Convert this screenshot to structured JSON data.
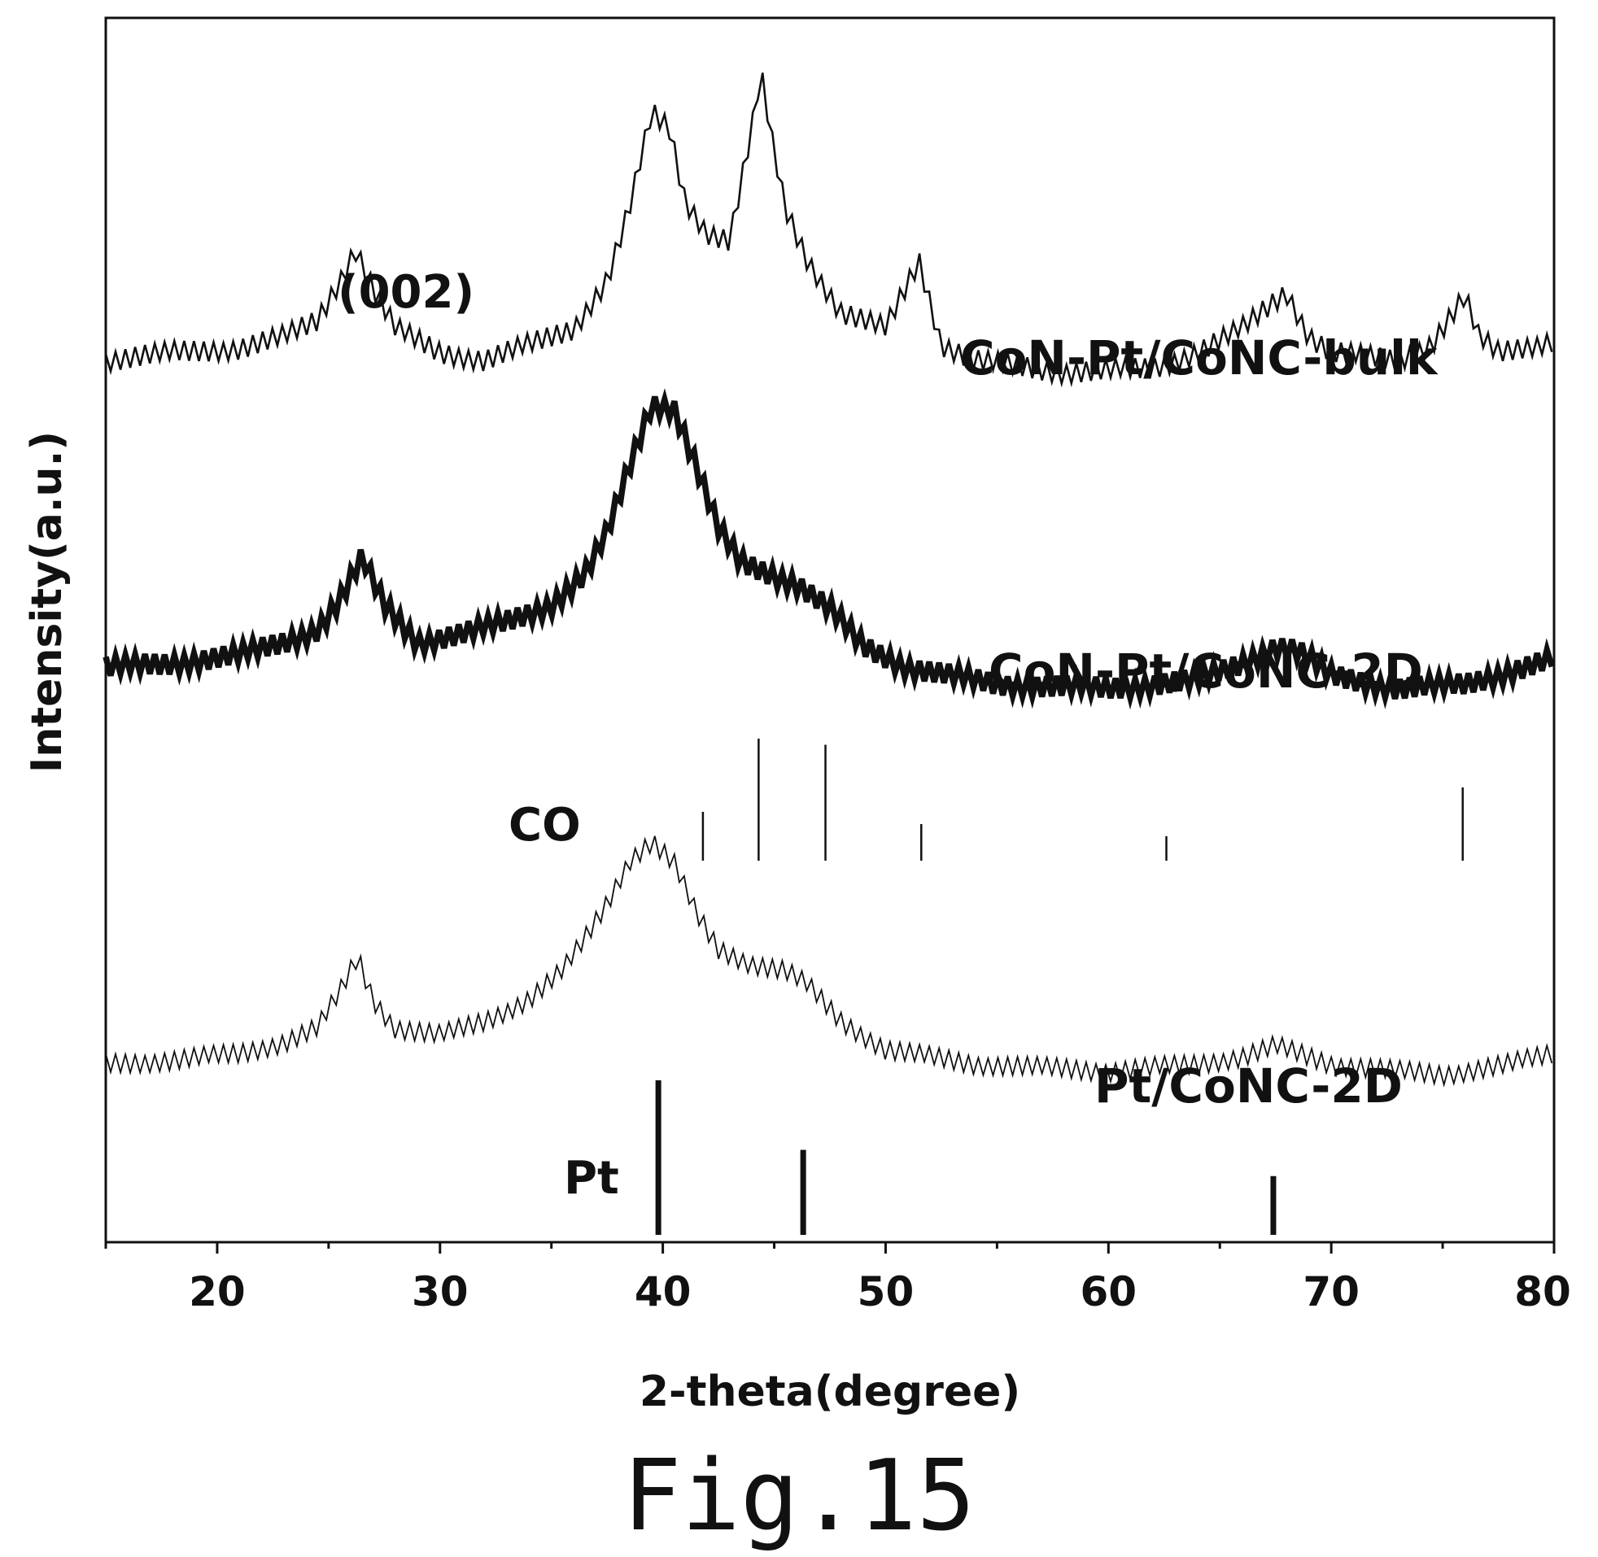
{
  "chart_data": {
    "type": "line",
    "title": "",
    "xlabel": "2-theta(degree)",
    "ylabel": "Intensity(a.u.)",
    "xlim": [
      15,
      80
    ],
    "xticks": [
      20,
      30,
      40,
      50,
      60,
      70,
      80
    ],
    "grid": false,
    "annotations": [
      {
        "text": "(002)",
        "x": 26
      }
    ],
    "series": [
      {
        "name": "CoN-Pt/CoNC-bulk",
        "x": [
          15,
          18,
          21,
          23,
          24.5,
          25.5,
          26.2,
          27,
          28,
          30,
          32,
          34,
          36,
          37.5,
          38.5,
          39.5,
          40.3,
          41,
          42,
          43,
          44,
          44.4,
          44.9,
          45.5,
          46.5,
          48,
          50,
          51.5,
          52.5,
          54,
          58,
          62,
          64,
          66,
          67.5,
          68,
          69,
          70,
          73,
          74.5,
          75.5,
          76,
          76.6,
          77.5,
          80
        ],
        "values": [
          0.3,
          0.32,
          0.33,
          0.36,
          0.4,
          0.5,
          0.58,
          0.48,
          0.38,
          0.32,
          0.3,
          0.34,
          0.38,
          0.5,
          0.68,
          0.92,
          0.88,
          0.7,
          0.62,
          0.6,
          0.88,
          1.02,
          0.85,
          0.68,
          0.55,
          0.42,
          0.38,
          0.55,
          0.34,
          0.3,
          0.27,
          0.28,
          0.32,
          0.38,
          0.45,
          0.47,
          0.36,
          0.32,
          0.3,
          0.34,
          0.42,
          0.46,
          0.36,
          0.32,
          0.35
        ]
      },
      {
        "name": "CoN-Pt/CoNC-2D",
        "x": [
          15,
          18,
          21,
          23,
          24.5,
          25.5,
          26.5,
          27.5,
          29,
          31,
          33,
          35,
          36.5,
          37.5,
          38.5,
          39.5,
          40.5,
          41.5,
          42.5,
          43.5,
          44.5,
          46,
          47.5,
          49,
          51,
          55,
          60,
          64,
          66,
          67.5,
          68.5,
          70,
          73,
          76,
          78,
          80
        ],
        "values": [
          0.3,
          0.31,
          0.33,
          0.36,
          0.39,
          0.46,
          0.56,
          0.45,
          0.36,
          0.38,
          0.41,
          0.45,
          0.52,
          0.62,
          0.78,
          0.93,
          0.92,
          0.78,
          0.63,
          0.55,
          0.53,
          0.5,
          0.44,
          0.35,
          0.3,
          0.26,
          0.25,
          0.27,
          0.31,
          0.35,
          0.34,
          0.28,
          0.25,
          0.26,
          0.29,
          0.32
        ]
      },
      {
        "name": "Pt/CoNC-2D",
        "x": [
          15,
          18,
          21,
          23,
          24.5,
          25.5,
          26.3,
          27,
          28,
          30,
          32,
          34,
          35.5,
          36.5,
          37.5,
          38.5,
          39.5,
          40.5,
          41.5,
          42.5,
          44,
          45.5,
          46.5,
          48,
          50,
          54,
          60,
          64,
          66,
          67.5,
          68.5,
          70,
          73,
          75,
          78,
          80
        ],
        "values": [
          0.3,
          0.31,
          0.33,
          0.36,
          0.4,
          0.5,
          0.6,
          0.48,
          0.4,
          0.38,
          0.42,
          0.48,
          0.56,
          0.65,
          0.75,
          0.87,
          0.92,
          0.86,
          0.72,
          0.62,
          0.58,
          0.56,
          0.52,
          0.42,
          0.34,
          0.3,
          0.28,
          0.3,
          0.32,
          0.35,
          0.33,
          0.3,
          0.28,
          0.27,
          0.3,
          0.33
        ]
      }
    ],
    "reference_patterns": [
      {
        "name": "CO",
        "positions": [
          41.8,
          44.3,
          47.3,
          51.6,
          62.6,
          75.9
        ],
        "relative_intensity": [
          0.4,
          1.0,
          0.95,
          0.3,
          0.2,
          0.6
        ]
      },
      {
        "name": "Pt",
        "positions": [
          39.8,
          46.3,
          67.4
        ],
        "relative_intensity": [
          1.0,
          0.55,
          0.38
        ]
      }
    ]
  }
}
